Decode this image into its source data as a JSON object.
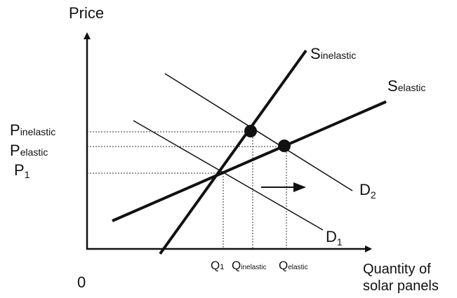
{
  "axes": {
    "y_label": "Price",
    "x_label_line1": "Quantity of",
    "x_label_line2": "solar panels",
    "origin": "0"
  },
  "curves": {
    "s_inelastic": {
      "main": "S",
      "sub": "inelastic"
    },
    "s_elastic": {
      "main": "S",
      "sub": "elastic"
    },
    "d2": {
      "main": "D",
      "sub": "2"
    },
    "d1": {
      "main": "D",
      "sub": "1"
    }
  },
  "price_labels": {
    "p_inelastic": {
      "main": "P",
      "sub": "inelastic"
    },
    "p_elastic": {
      "main": "P",
      "sub": "elastic"
    },
    "p1": {
      "main": "P",
      "sub": "1"
    }
  },
  "quantity_labels": {
    "q1": {
      "main": "Q",
      "sub": "1"
    },
    "q_inelastic": {
      "main": "Q",
      "sub": "inelastic"
    },
    "q_elastic": {
      "main": "Q",
      "sub": "elastic"
    }
  }
}
